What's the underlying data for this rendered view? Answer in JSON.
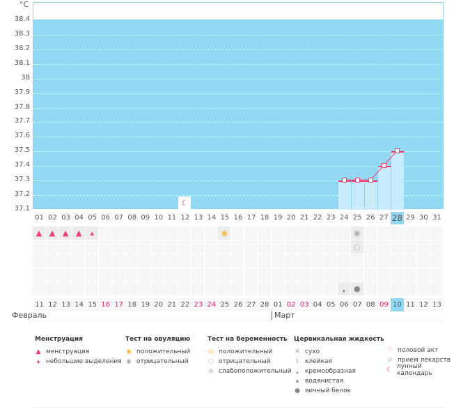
{
  "unit_label": "°C",
  "y_ticks": [
    "38.4",
    "38.3",
    "38.2",
    "38.1",
    "38",
    "37.9",
    "37.8",
    "37.7",
    "37.6",
    "37.5",
    "37.4",
    "37.3",
    "37.2",
    "37.1"
  ],
  "chart_data": {
    "type": "line",
    "ylim": [
      37.1,
      38.4
    ],
    "cycle_days": [
      "01",
      "02",
      "03",
      "04",
      "05",
      "06",
      "07",
      "08",
      "09",
      "10",
      "11",
      "12",
      "13",
      "14",
      "15",
      "16",
      "17",
      "18",
      "19",
      "20",
      "21",
      "22",
      "23",
      "24",
      "25",
      "26",
      "27",
      "28",
      "29",
      "30",
      "31"
    ],
    "temperatures": [
      {
        "day": 24,
        "value": 37.3
      },
      {
        "day": 25,
        "value": 37.3
      },
      {
        "day": 26,
        "value": 37.3
      },
      {
        "day": 27,
        "value": 37.4
      },
      {
        "day": 28,
        "value": 37.5
      }
    ],
    "current_day": 28
  },
  "calendar_dates": [
    {
      "d": "11"
    },
    {
      "d": "12"
    },
    {
      "d": "13"
    },
    {
      "d": "14"
    },
    {
      "d": "15"
    },
    {
      "d": "16",
      "red": true
    },
    {
      "d": "17",
      "red": true
    },
    {
      "d": "18"
    },
    {
      "d": "19"
    },
    {
      "d": "20"
    },
    {
      "d": "21"
    },
    {
      "d": "22"
    },
    {
      "d": "23",
      "red": true
    },
    {
      "d": "24",
      "red": true
    },
    {
      "d": "25"
    },
    {
      "d": "26"
    },
    {
      "d": "27"
    },
    {
      "d": "28"
    },
    {
      "d": "01"
    },
    {
      "d": "02",
      "red": true
    },
    {
      "d": "03",
      "red": true
    },
    {
      "d": "04"
    },
    {
      "d": "05"
    },
    {
      "d": "06"
    },
    {
      "d": "07"
    },
    {
      "d": "08"
    },
    {
      "d": "09",
      "red": true
    },
    {
      "d": "10"
    },
    {
      "d": "11"
    },
    {
      "d": "12"
    },
    {
      "d": "13"
    }
  ],
  "months": {
    "first": "Февраль",
    "second": "Март"
  },
  "marks": [
    {
      "day": 12,
      "row": 0,
      "icon": "moon-icon"
    },
    {
      "day": 1,
      "row": 1,
      "icon": "menstruation-icon"
    },
    {
      "day": 2,
      "row": 1,
      "icon": "menstruation-icon"
    },
    {
      "day": 3,
      "row": 1,
      "icon": "menstruation-icon"
    },
    {
      "day": 4,
      "row": 1,
      "icon": "menstruation-icon"
    },
    {
      "day": 5,
      "row": 1,
      "icon": "spotting-icon"
    },
    {
      "day": 15,
      "row": 1,
      "icon": "ovulation-positive-icon"
    },
    {
      "day": 25,
      "row": 1,
      "icon": "ovulation-negative-icon"
    },
    {
      "day": 25,
      "row": 2,
      "icon": "pregnancy-negative-icon"
    },
    {
      "day": 24,
      "row": 5,
      "icon": "creamy-icon"
    },
    {
      "day": 25,
      "row": 5,
      "icon": "egg-white-icon"
    }
  ],
  "legend": [
    {
      "title": "Менструация",
      "items": [
        {
          "icon": "menstruation-icon",
          "label": "менструация"
        },
        {
          "icon": "spotting-icon",
          "label": "небольшие выделения"
        }
      ]
    },
    {
      "title": "Тест на овуляцию",
      "items": [
        {
          "icon": "ovulation-positive-icon",
          "label": "положительный"
        },
        {
          "icon": "ovulation-negative-icon",
          "label": "отрицательный"
        }
      ]
    },
    {
      "title": "Тест на беременность",
      "items": [
        {
          "icon": "pregnancy-positive-icon",
          "label": "положительный"
        },
        {
          "icon": "pregnancy-negative-icon",
          "label": "отрицательный"
        },
        {
          "icon": "pregnancy-weak-icon",
          "label": "слабоположительный"
        }
      ]
    },
    {
      "title": "Цервикальная жидкость",
      "items": [
        {
          "icon": "dry-icon",
          "label": "сухо"
        },
        {
          "icon": "sticky-icon",
          "label": "клейкая"
        },
        {
          "icon": "creamy-icon",
          "label": "кремообразная"
        },
        {
          "icon": "watery-icon",
          "label": "водянистая"
        },
        {
          "icon": "egg-white-icon",
          "label": "яичный белок"
        }
      ]
    },
    {
      "title": "",
      "items": [
        {
          "icon": "heart-icon",
          "label": "половой акт"
        },
        {
          "icon": "pill-icon",
          "label": "прием лекарств"
        },
        {
          "icon": "moon-icon",
          "label": "лунный календарь"
        }
      ]
    }
  ],
  "colors": {
    "accent": "#ef3b6e",
    "chart_bg": "#93d8f3",
    "bar": "#c9ebfb"
  }
}
